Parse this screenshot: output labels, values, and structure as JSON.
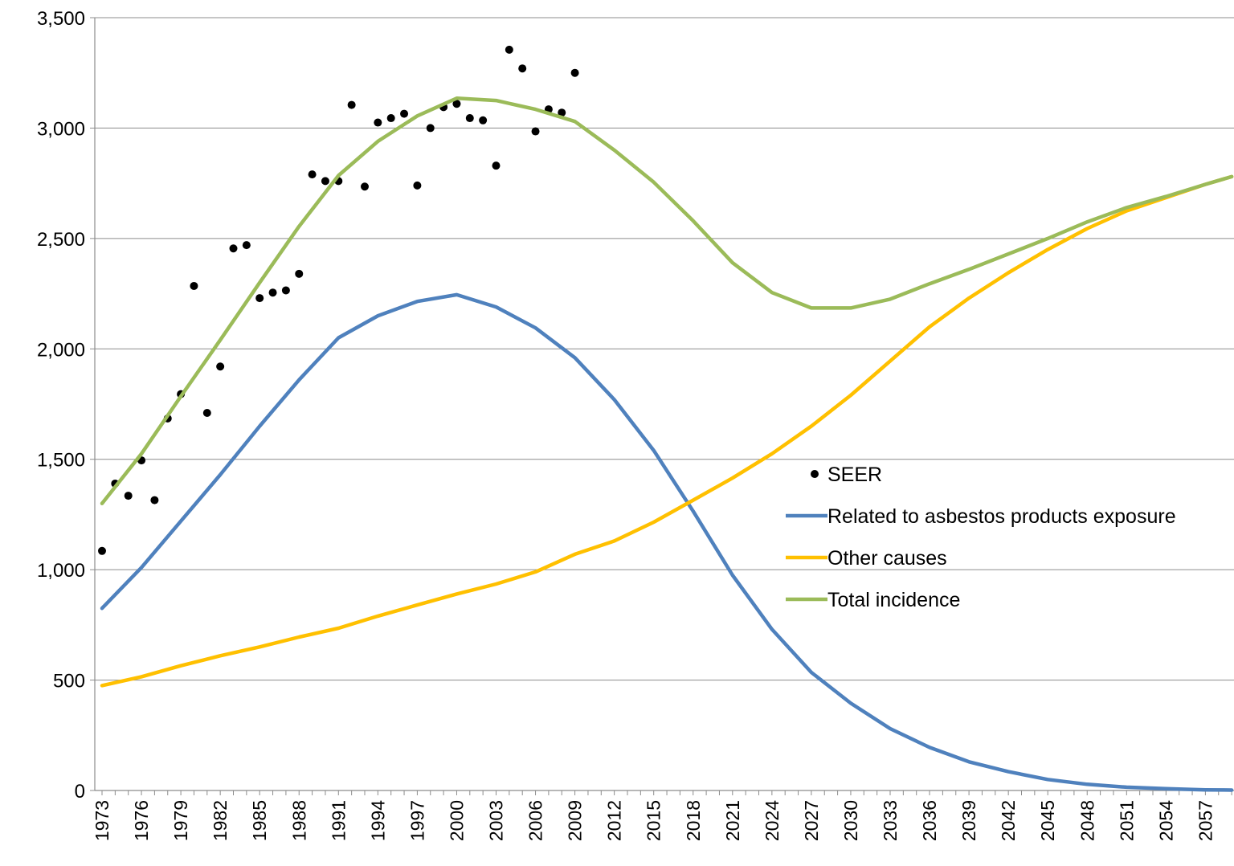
{
  "chart_data": {
    "type": "line",
    "title": "",
    "xlabel": "",
    "ylabel": "",
    "ylim": [
      0,
      3500
    ],
    "y_ticks": [
      0,
      500,
      1000,
      1500,
      2000,
      2500,
      3000,
      3500
    ],
    "y_tick_labels": [
      "0",
      "500",
      "1,000",
      "1,500",
      "2,000",
      "2,500",
      "3,000",
      "3,500"
    ],
    "x_range": [
      1973,
      2059
    ],
    "x_ticks": [
      1973,
      1976,
      1979,
      1982,
      1985,
      1988,
      1991,
      1994,
      1997,
      2000,
      2003,
      2006,
      2009,
      2012,
      2015,
      2018,
      2021,
      2024,
      2027,
      2030,
      2033,
      2036,
      2039,
      2042,
      2045,
      2048,
      2051,
      2054,
      2057
    ],
    "x_tick_labels": [
      "1973",
      "1976",
      "1979",
      "1982",
      "1985",
      "1988",
      "1991",
      "1994",
      "1997",
      "2000",
      "2003",
      "2006",
      "2009",
      "2012",
      "2015",
      "2018",
      "2021",
      "2024",
      "2027",
      "2030",
      "2033",
      "2036",
      "2039",
      "2042",
      "2045",
      "2048",
      "2051",
      "2054",
      "2057"
    ],
    "grid": "horizontal",
    "legend_position": "center-right",
    "series": [
      {
        "name": "SEER",
        "kind": "scatter",
        "color": "#000000",
        "points": [
          [
            1973,
            1085
          ],
          [
            1974,
            1390
          ],
          [
            1975,
            1335
          ],
          [
            1976,
            1495
          ],
          [
            1977,
            1315
          ],
          [
            1978,
            1685
          ],
          [
            1979,
            1795
          ],
          [
            1980,
            2285
          ],
          [
            1981,
            1710
          ],
          [
            1982,
            1920
          ],
          [
            1983,
            2455
          ],
          [
            1984,
            2470
          ],
          [
            1985,
            2230
          ],
          [
            1986,
            2255
          ],
          [
            1987,
            2265
          ],
          [
            1988,
            2340
          ],
          [
            1989,
            2790
          ],
          [
            1990,
            2760
          ],
          [
            1991,
            2760
          ],
          [
            1992,
            3105
          ],
          [
            1993,
            2735
          ],
          [
            1994,
            3025
          ],
          [
            1995,
            3045
          ],
          [
            1996,
            3065
          ],
          [
            1997,
            2740
          ],
          [
            1998,
            3000
          ],
          [
            1999,
            3095
          ],
          [
            2000,
            3110
          ],
          [
            2001,
            3045
          ],
          [
            2002,
            3035
          ],
          [
            2003,
            2830
          ],
          [
            2004,
            3355
          ],
          [
            2005,
            3270
          ],
          [
            2006,
            2985
          ],
          [
            2007,
            3085
          ],
          [
            2008,
            3070
          ],
          [
            2009,
            3250
          ]
        ]
      },
      {
        "name": "Related to asbestos products exposure",
        "kind": "line",
        "color": "#4f81bd",
        "points": [
          [
            1973,
            825
          ],
          [
            1976,
            1010
          ],
          [
            1979,
            1220
          ],
          [
            1982,
            1430
          ],
          [
            1985,
            1650
          ],
          [
            1988,
            1860
          ],
          [
            1991,
            2050
          ],
          [
            1994,
            2150
          ],
          [
            1997,
            2215
          ],
          [
            2000,
            2245
          ],
          [
            2003,
            2190
          ],
          [
            2006,
            2095
          ],
          [
            2009,
            1960
          ],
          [
            2012,
            1770
          ],
          [
            2015,
            1540
          ],
          [
            2018,
            1265
          ],
          [
            2021,
            975
          ],
          [
            2024,
            730
          ],
          [
            2027,
            535
          ],
          [
            2030,
            395
          ],
          [
            2033,
            280
          ],
          [
            2036,
            195
          ],
          [
            2039,
            130
          ],
          [
            2042,
            85
          ],
          [
            2045,
            50
          ],
          [
            2048,
            28
          ],
          [
            2051,
            15
          ],
          [
            2054,
            8
          ],
          [
            2057,
            3
          ],
          [
            2059,
            2
          ]
        ]
      },
      {
        "name": "Other causes",
        "kind": "line",
        "color": "#ffc000",
        "points": [
          [
            1973,
            475
          ],
          [
            1976,
            515
          ],
          [
            1979,
            565
          ],
          [
            1982,
            610
          ],
          [
            1985,
            650
          ],
          [
            1988,
            695
          ],
          [
            1991,
            735
          ],
          [
            1994,
            790
          ],
          [
            1997,
            840
          ],
          [
            2000,
            890
          ],
          [
            2003,
            935
          ],
          [
            2006,
            990
          ],
          [
            2009,
            1070
          ],
          [
            2012,
            1130
          ],
          [
            2015,
            1215
          ],
          [
            2018,
            1315
          ],
          [
            2021,
            1415
          ],
          [
            2024,
            1525
          ],
          [
            2027,
            1650
          ],
          [
            2030,
            1790
          ],
          [
            2033,
            1945
          ],
          [
            2036,
            2100
          ],
          [
            2039,
            2230
          ],
          [
            2042,
            2345
          ],
          [
            2045,
            2450
          ],
          [
            2048,
            2545
          ],
          [
            2051,
            2625
          ],
          [
            2054,
            2685
          ],
          [
            2057,
            2745
          ],
          [
            2059,
            2780
          ]
        ]
      },
      {
        "name": "Total incidence",
        "kind": "line",
        "color": "#9bbb59",
        "points": [
          [
            1973,
            1300
          ],
          [
            1976,
            1525
          ],
          [
            1979,
            1785
          ],
          [
            1982,
            2040
          ],
          [
            1985,
            2300
          ],
          [
            1988,
            2555
          ],
          [
            1991,
            2785
          ],
          [
            1994,
            2940
          ],
          [
            1997,
            3055
          ],
          [
            2000,
            3135
          ],
          [
            2003,
            3125
          ],
          [
            2006,
            3085
          ],
          [
            2009,
            3030
          ],
          [
            2012,
            2900
          ],
          [
            2015,
            2755
          ],
          [
            2018,
            2580
          ],
          [
            2021,
            2390
          ],
          [
            2024,
            2255
          ],
          [
            2027,
            2185
          ],
          [
            2030,
            2185
          ],
          [
            2033,
            2225
          ],
          [
            2036,
            2295
          ],
          [
            2039,
            2360
          ],
          [
            2042,
            2430
          ],
          [
            2045,
            2500
          ],
          [
            2048,
            2575
          ],
          [
            2051,
            2640
          ],
          [
            2054,
            2690
          ],
          [
            2057,
            2745
          ],
          [
            2059,
            2780
          ]
        ]
      }
    ]
  }
}
